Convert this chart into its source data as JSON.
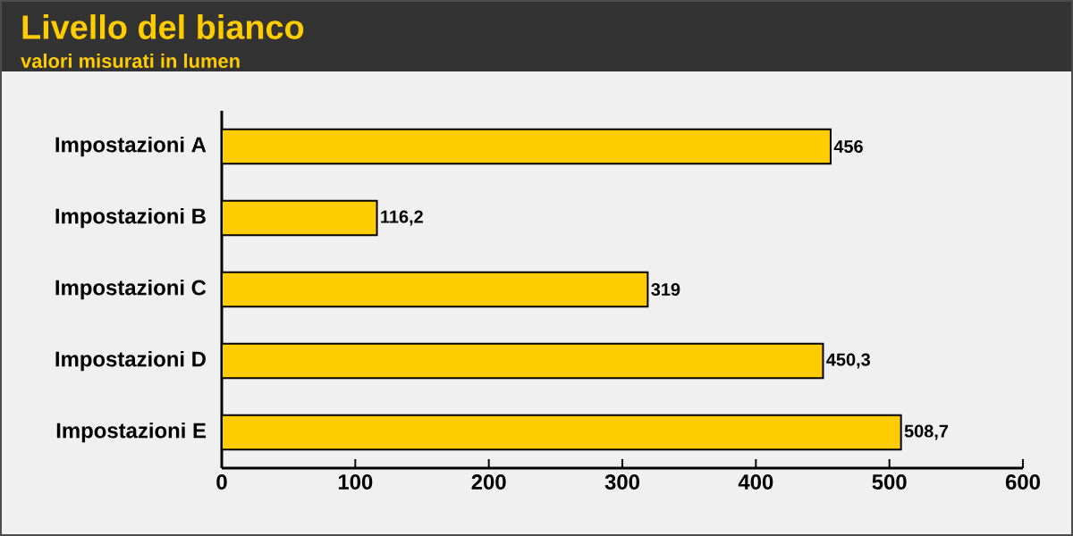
{
  "chart_data": {
    "type": "bar",
    "orientation": "horizontal",
    "title": "Livello del bianco",
    "subtitle": "valori misurati in lumen",
    "categories": [
      "Impostazioni A",
      "Impostazioni B",
      "Impostazioni C",
      "Impostazioni D",
      "Impostazioni E"
    ],
    "values": [
      456,
      116.2,
      319,
      450.3,
      508.7
    ],
    "value_labels": [
      "456",
      "116,2",
      "319",
      "450,3",
      "508,7"
    ],
    "color": "#ffcc00",
    "xlim": [
      0,
      600
    ],
    "xticks": [
      0,
      100,
      200,
      300,
      400,
      500,
      600
    ],
    "grid": false
  }
}
